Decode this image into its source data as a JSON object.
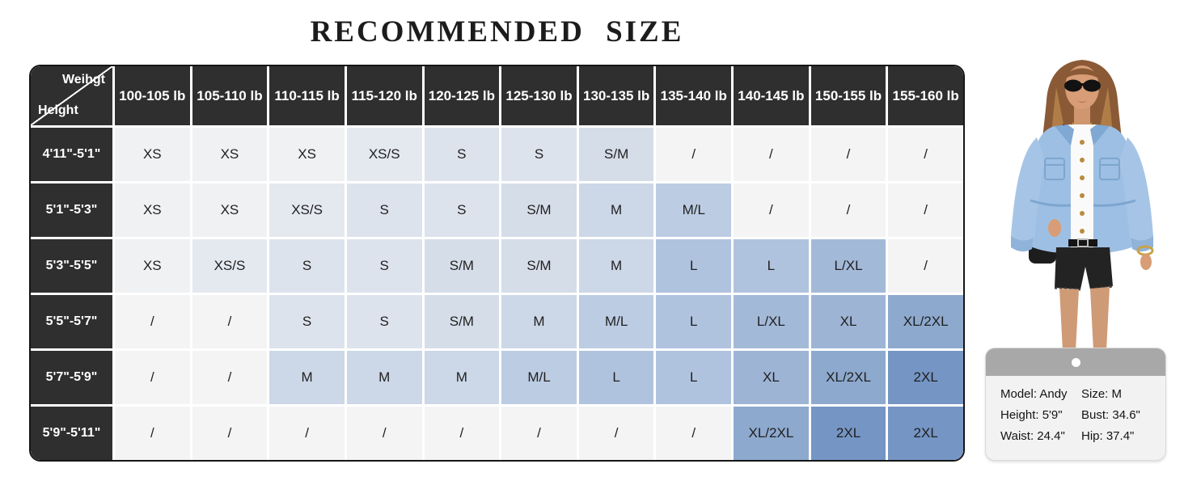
{
  "title": "RECOMMENDED SIZE",
  "size_chart": {
    "corner": {
      "top_label": "Weihgt",
      "bottom_label": "Height"
    },
    "weight_headers": [
      "100-105 lb",
      "105-110 lb",
      "110-115 lb",
      "115-120 lb",
      "120-125 lb",
      "125-130 lb",
      "130-135 lb",
      "135-140 lb",
      "140-145 lb",
      "150-155 lb",
      "155-160 lb"
    ],
    "rows": [
      {
        "height_label": "4'11\"-5'1\"",
        "sizes": [
          "XS",
          "XS",
          "XS",
          "XS/S",
          "S",
          "S",
          "S/M",
          "/",
          "/",
          "/",
          "/"
        ]
      },
      {
        "height_label": "5'1\"-5'3\"",
        "sizes": [
          "XS",
          "XS",
          "XS/S",
          "S",
          "S",
          "S/M",
          "M",
          "M/L",
          "/",
          "/",
          "/"
        ]
      },
      {
        "height_label": "5'3\"-5'5\"",
        "sizes": [
          "XS",
          "XS/S",
          "S",
          "S",
          "S/M",
          "S/M",
          "M",
          "L",
          "L",
          "L/XL",
          "/"
        ]
      },
      {
        "height_label": "5'5\"-5'7\"",
        "sizes": [
          "/",
          "/",
          "S",
          "S",
          "S/M",
          "M",
          "M/L",
          "L",
          "L/XL",
          "XL",
          "XL/2XL"
        ]
      },
      {
        "height_label": "5'7\"-5'9\"",
        "sizes": [
          "/",
          "/",
          "M",
          "M",
          "M",
          "M/L",
          "L",
          "L",
          "XL",
          "XL/2XL",
          "2XL"
        ]
      },
      {
        "height_label": "5'9\"-5'11\"",
        "sizes": [
          "/",
          "/",
          "/",
          "/",
          "/",
          "/",
          "/",
          "/",
          "XL/2XL",
          "2XL",
          "2XL"
        ]
      }
    ],
    "colors": {
      "header_bg": "#2f2f2f",
      "header_text": "#ffffff",
      "cell_text": "#1f1f1f",
      "grid_line": "#ffffff",
      "outline": "#161616",
      "size_fill": {
        "XS": "#f0f1f3",
        "XS/S": "#e4e8ef",
        "S": "#dde3ec",
        "S/M": "#d5dde9",
        "M": "#ccd7e7",
        "M/L": "#bccce3",
        "L": "#b0c3de",
        "L/XL": "#a3b9d8",
        "XL": "#9db4d5",
        "XL/2XL": "#8da9ce",
        "2XL": "#7595c4",
        "/": "#f4f4f5"
      }
    }
  },
  "model_card": {
    "band_color": "#a8a8a8",
    "body_color": "#f2f2f2",
    "left": [
      "Model: Andy",
      "Height: 5'9\"",
      "Waist: 24.4\""
    ],
    "right": [
      "Size: M",
      "Bust: 34.6\"",
      "Hip: 37.4\""
    ]
  },
  "model_image": {
    "description": "model wearing light blue denim jacket and black shorts",
    "jacket_color": "#9dbfe3",
    "shorts_color": "#232323"
  }
}
